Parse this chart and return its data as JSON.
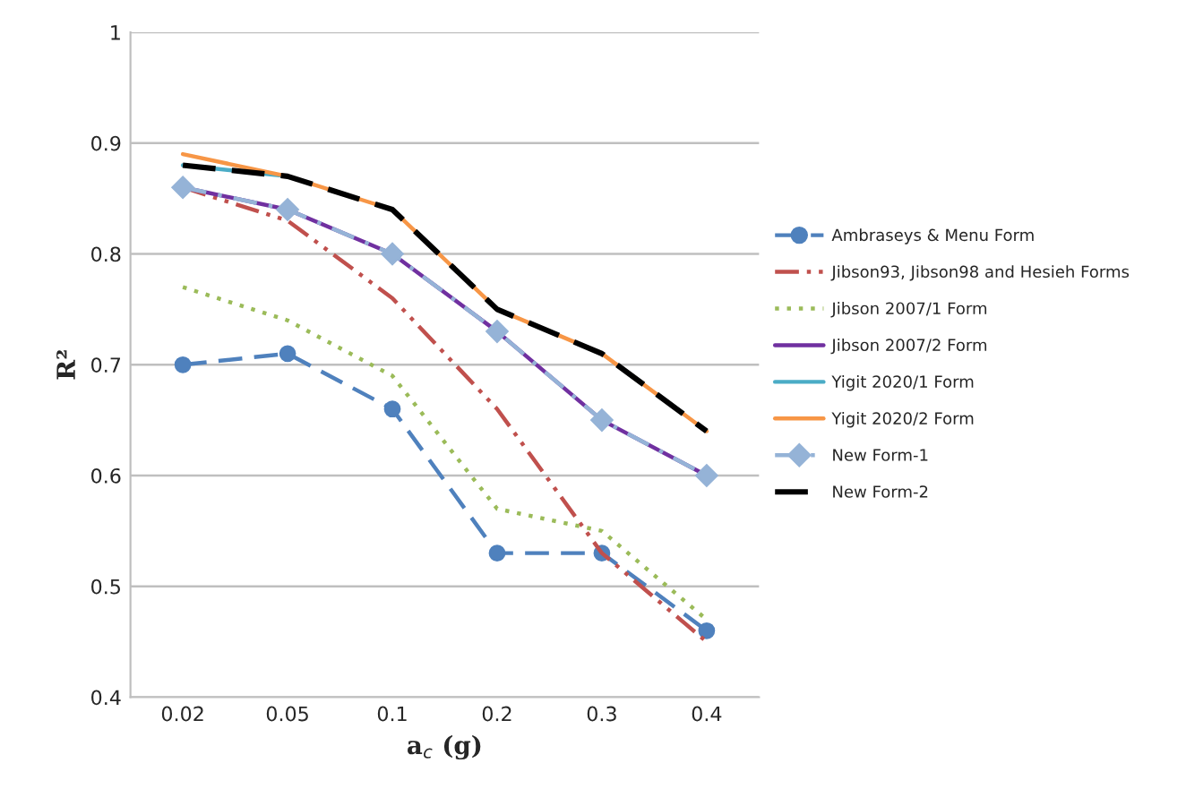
{
  "chart_data": {
    "type": "line",
    "xlabel": "a$_{c}$ (g)",
    "ylabel": "R²",
    "categories": [
      "0.02",
      "0.05",
      "0.1",
      "0.2",
      "0.3",
      "0.4"
    ],
    "series": [
      {
        "name": "Ambraseys & Menu Form",
        "color": "#4f81bd",
        "values": [
          0.7,
          0.71,
          0.66,
          0.53,
          0.53,
          0.46
        ],
        "line_style": "dashed",
        "marker": "circle"
      },
      {
        "name": "Jibson93, Jibson98 and Hesieh Forms",
        "color": "#c0504d",
        "values": [
          0.86,
          0.83,
          0.76,
          0.66,
          0.53,
          0.45
        ],
        "line_style": "dashdotdot",
        "marker": "none"
      },
      {
        "name": "Jibson 2007/1 Form",
        "color": "#9bbb59",
        "values": [
          0.77,
          0.74,
          0.69,
          0.57,
          0.55,
          0.47
        ],
        "line_style": "dotted",
        "marker": "none"
      },
      {
        "name": "Jibson 2007/2 Form",
        "color": "#7030a0",
        "values": [
          0.86,
          0.84,
          0.8,
          0.73,
          0.65,
          0.6
        ],
        "line_style": "solid",
        "marker": "none"
      },
      {
        "name": "Yigit 2020/1 Form",
        "color": "#4bacc6",
        "values": [
          0.88,
          0.87,
          null,
          null,
          null,
          null
        ],
        "line_style": "solid",
        "marker": "none"
      },
      {
        "name": "Yigit 2020/2 Form",
        "color": "#f79646",
        "values": [
          0.89,
          0.87,
          0.84,
          0.75,
          0.71,
          0.64
        ],
        "line_style": "solid",
        "marker": "none"
      },
      {
        "name": "New Form-1",
        "color": "#95b3d7",
        "values": [
          0.86,
          0.84,
          0.8,
          0.73,
          0.65,
          0.6
        ],
        "line_style": "dashdot",
        "marker": "diamond"
      },
      {
        "name": "New Form-2",
        "color": "#000000",
        "values": [
          0.88,
          0.87,
          0.84,
          0.75,
          0.71,
          0.64
        ],
        "line_style": "dashed",
        "marker": "none"
      }
    ],
    "ylim": [
      0.4,
      1
    ],
    "yticks": [
      0.4,
      0.5,
      0.6,
      0.7,
      0.8,
      0.9,
      1
    ],
    "grid": "y",
    "legend": "right"
  }
}
